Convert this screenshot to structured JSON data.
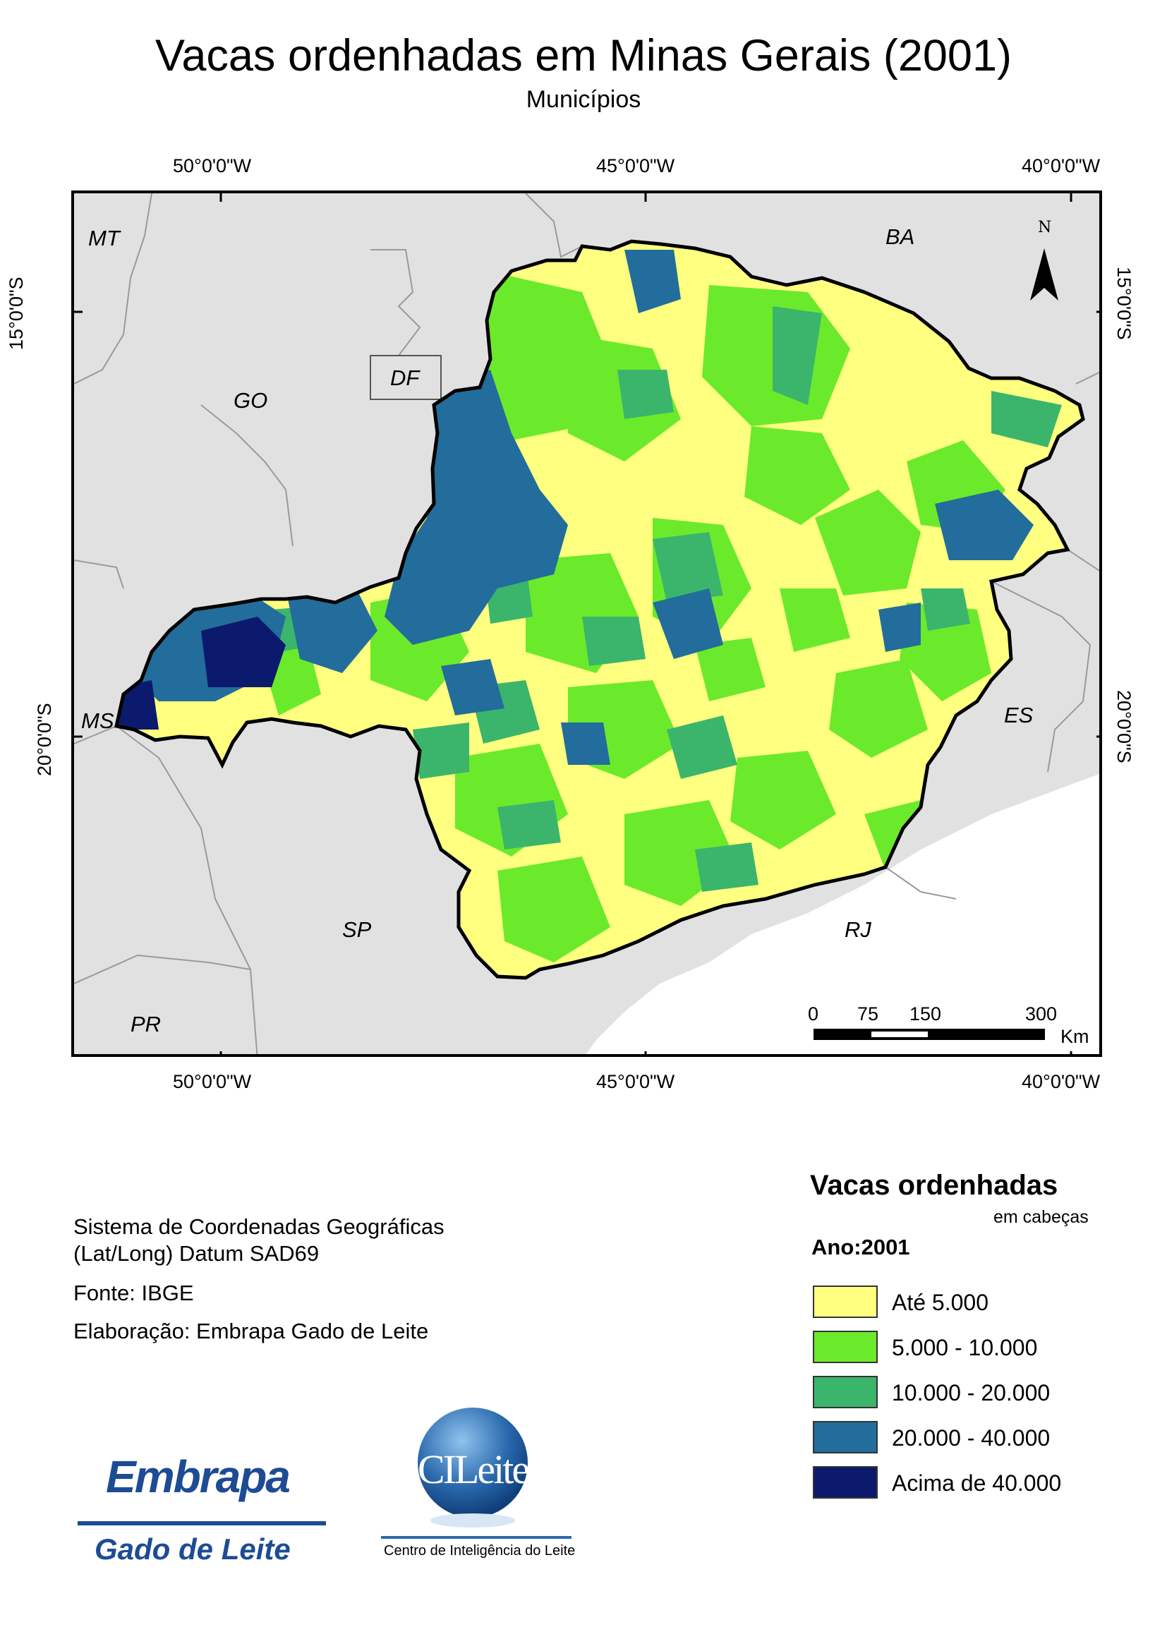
{
  "title": "Vacas ordenhadas em Minas Gerais (2001)",
  "subtitle": "Municípios",
  "coordinates": {
    "lon_top": [
      "50°0'0\"W",
      "45°0'0\"W",
      "40°0'0\"W"
    ],
    "lon_bottom": [
      "50°0'0\"W",
      "45°0'0\"W",
      "40°0'0\"W"
    ],
    "lat_left": [
      "15°0'0\"S",
      "20°0'0\"S"
    ],
    "lat_right": [
      "15°0'0\"S",
      "20°0'0\"S"
    ]
  },
  "states": [
    "MT",
    "BA",
    "GO",
    "DF",
    "MS",
    "ES",
    "SP",
    "RJ",
    "PR"
  ],
  "north_arrow": {
    "label": "N",
    "icon": "north-arrow-icon"
  },
  "scale_bar": {
    "ticks": [
      "0",
      "75",
      "150",
      "300"
    ],
    "unit": "Km"
  },
  "info": {
    "coord_system_line1": "Sistema de Coordenadas Geográficas",
    "coord_system_line2": "(Lat/Long) Datum SAD69",
    "source": "Fonte: IBGE",
    "author": "Elaboração: Embrapa Gado de Leite"
  },
  "legend": {
    "title": "Vacas ordenhadas",
    "unit": "em cabeças",
    "year": "Ano:2001",
    "classes": [
      {
        "label": "Até 5.000",
        "color": "#ffff80"
      },
      {
        "label": "5.000 - 10.000",
        "color": "#6bea2c"
      },
      {
        "label": "10.000 - 20.000",
        "color": "#3bb56b"
      },
      {
        "label": "20.000 - 40.000",
        "color": "#226d9b"
      },
      {
        "label": "Acima de 40.000",
        "color": "#0c1a6d"
      }
    ]
  },
  "logos": {
    "embrapa_word": "Embrapa",
    "embrapa_unit": "Gado de Leite",
    "cileite_word": "CILeite",
    "cileite_caption": "Centro de Inteligência do Leite"
  },
  "colors": {
    "background_states": "#e1e1e1",
    "state_border": "#9a9a9a",
    "mg_border": "#000000"
  }
}
